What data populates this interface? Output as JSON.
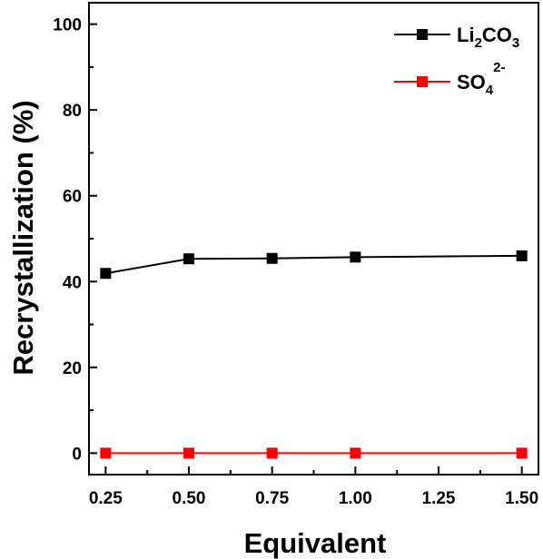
{
  "chart_data": {
    "type": "line",
    "xlabel": "Equivalent",
    "ylabel": "Recrystallization (%)",
    "xlim": [
      0.2,
      1.55
    ],
    "ylim": [
      -5,
      105
    ],
    "xticks": [
      0.25,
      0.5,
      0.75,
      1.0,
      1.25,
      1.5
    ],
    "xtick_labels": [
      "0.25",
      "0.50",
      "0.75",
      "1.00",
      "1.25",
      "1.50"
    ],
    "yticks": [
      0,
      20,
      40,
      60,
      80,
      100
    ],
    "ytick_labels": [
      "0",
      "20",
      "40",
      "60",
      "80",
      "100"
    ],
    "grid": false,
    "legend_position": "top-right",
    "series": [
      {
        "name": "Li2CO3",
        "legend_parts": [
          [
            "Li",
            ""
          ],
          [
            "2",
            "sub"
          ],
          [
            "CO",
            ""
          ],
          [
            "3",
            "sub"
          ]
        ],
        "color": "#000000",
        "marker": "square",
        "x": [
          0.25,
          0.5,
          0.75,
          1.0,
          1.5
        ],
        "y": [
          41.9,
          45.3,
          45.4,
          45.7,
          46.0
        ]
      },
      {
        "name": "SO42-",
        "legend_parts": [
          [
            "SO",
            ""
          ],
          [
            "4",
            "sub"
          ],
          [
            "2-",
            "sup"
          ]
        ],
        "color": "#ff0000",
        "marker": "square",
        "x": [
          0.25,
          0.5,
          0.75,
          1.0,
          1.5
        ],
        "y": [
          0.0,
          0.0,
          0.0,
          0.0,
          0.0
        ]
      }
    ]
  }
}
